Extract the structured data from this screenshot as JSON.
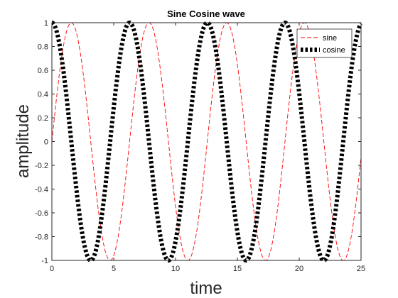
{
  "chart_data": {
    "type": "line",
    "title": "Sine Cosine wave",
    "xlabel": "time",
    "ylabel": "amplitude",
    "xlim": [
      0,
      25
    ],
    "ylim": [
      -1,
      1
    ],
    "x_ticks": [
      0,
      5,
      10,
      15,
      20,
      25
    ],
    "y_ticks": [
      -1,
      -0.8,
      -0.6,
      -0.4,
      -0.2,
      0,
      0.2,
      0.4,
      0.6,
      0.8,
      1
    ],
    "x_tick_labels": [
      "0",
      "5",
      "10",
      "15",
      "20",
      "25"
    ],
    "y_tick_labels": [
      "-1",
      "-0.8",
      "-0.6",
      "-0.4",
      "-0.2",
      "0",
      "0.2",
      "0.4",
      "0.6",
      "0.8",
      "1"
    ],
    "grid": false,
    "legend_position": "top-right",
    "series": [
      {
        "name": "sine",
        "function": "sin",
        "color": "#ff0000",
        "line_style": "dashed",
        "x": [
          0,
          0.5,
          1,
          1.5,
          2,
          2.5,
          3,
          3.5,
          4,
          4.5,
          5,
          5.5,
          6,
          6.5,
          7,
          7.5,
          8,
          8.5,
          9,
          9.5,
          10,
          10.5,
          11,
          11.5,
          12,
          12.5,
          13,
          13.5,
          14,
          14.5,
          15,
          15.5,
          16,
          16.5,
          17,
          17.5,
          18,
          18.5,
          19,
          19.5,
          20,
          20.5,
          21,
          21.5,
          22,
          22.5,
          23,
          23.5,
          24,
          24.5,
          25
        ],
        "values": [
          0,
          0.479,
          0.841,
          0.997,
          0.909,
          0.598,
          0.141,
          -0.351,
          -0.757,
          -0.978,
          -0.959,
          -0.706,
          -0.279,
          0.215,
          0.657,
          0.938,
          0.989,
          0.798,
          0.412,
          -0.075,
          -0.544,
          -0.88,
          -1.0,
          -0.875,
          -0.537,
          -0.066,
          0.42,
          0.804,
          0.991,
          0.935,
          0.65,
          0.207,
          -0.288,
          -0.712,
          -0.961,
          -0.976,
          -0.751,
          -0.342,
          0.15,
          0.605,
          0.913,
          0.996,
          0.837,
          0.472,
          -0.009,
          -0.487,
          -0.846,
          -0.998,
          -0.906,
          -0.59,
          -0.132
        ]
      },
      {
        "name": "cosine",
        "function": "cos",
        "color": "#000000",
        "line_style": "dotted-thick",
        "x": [
          0,
          0.5,
          1,
          1.5,
          2,
          2.5,
          3,
          3.5,
          4,
          4.5,
          5,
          5.5,
          6,
          6.5,
          7,
          7.5,
          8,
          8.5,
          9,
          9.5,
          10,
          10.5,
          11,
          11.5,
          12,
          12.5,
          13,
          13.5,
          14,
          14.5,
          15,
          15.5,
          16,
          16.5,
          17,
          17.5,
          18,
          18.5,
          19,
          19.5,
          20,
          20.5,
          21,
          21.5,
          22,
          22.5,
          23,
          23.5,
          24,
          24.5,
          25
        ],
        "values": [
          1,
          0.878,
          0.54,
          0.071,
          -0.416,
          -0.801,
          -0.99,
          -0.936,
          -0.654,
          -0.211,
          0.284,
          0.709,
          0.96,
          0.977,
          0.754,
          0.347,
          -0.146,
          -0.602,
          -0.911,
          -0.997,
          -0.839,
          -0.476,
          0.004,
          0.483,
          0.844,
          0.998,
          0.907,
          0.595,
          0.137,
          -0.355,
          -0.76,
          -0.978,
          -0.958,
          -0.703,
          -0.275,
          0.219,
          0.66,
          0.939,
          0.989,
          0.796,
          0.408,
          -0.08,
          -0.548,
          -0.882,
          -1.0,
          -0.873,
          -0.533,
          -0.061,
          0.424,
          0.807,
          0.991
        ]
      }
    ]
  }
}
